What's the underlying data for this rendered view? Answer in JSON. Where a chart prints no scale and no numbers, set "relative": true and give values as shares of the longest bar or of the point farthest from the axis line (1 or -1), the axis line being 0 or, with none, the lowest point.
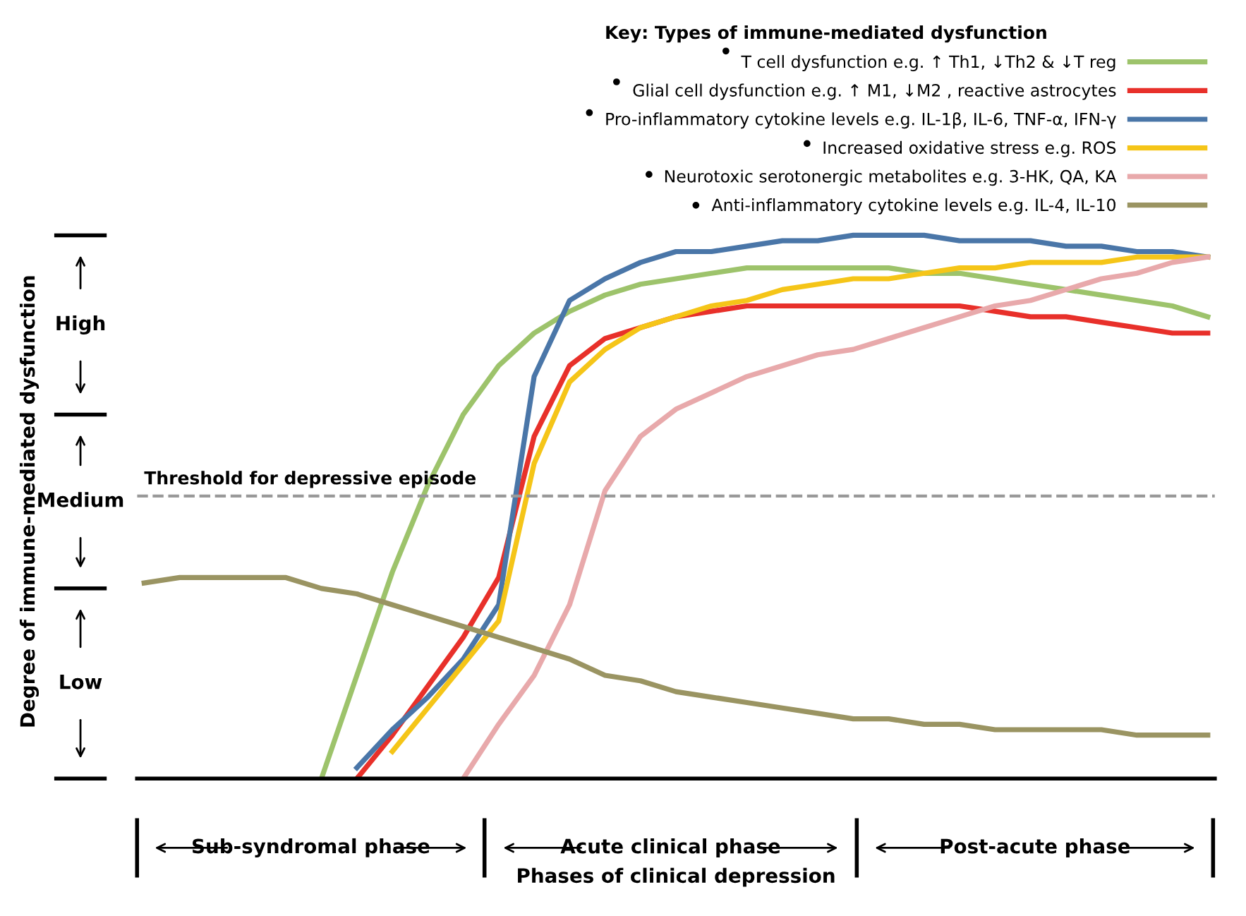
{
  "chart_data": {
    "type": "line",
    "relative": true,
    "xlabel": "Phases of clinical depression",
    "legend_title": "Key: Types of immune-mediated dysfunction",
    "legend": "top right",
    "categories": [
      null,
      null,
      null,
      null,
      null,
      null,
      null,
      null,
      null,
      null,
      null,
      null,
      null,
      null,
      null,
      null,
      null,
      null,
      null,
      null,
      null,
      null,
      null,
      null,
      null,
      null,
      null,
      null,
      null,
      null,
      null
    ],
    "series": [
      {
        "name": "T cell dysfunction e.g. ↑ Th1, ↓Th2 & ↓T reg",
        "color": "#9dc36b",
        "values": [
          null,
          null,
          null,
          null,
          null,
          0,
          0.19,
          0.38,
          0.54,
          0.67,
          0.76,
          0.82,
          0.86,
          0.89,
          0.91,
          0.92,
          0.93,
          0.94,
          0.94,
          0.94,
          0.94,
          0.94,
          0.93,
          0.93,
          0.92,
          0.91,
          0.9,
          0.89,
          0.88,
          0.87,
          0.85
        ]
      },
      {
        "name": "Glial cell dysfunction e.g. ↑ M1, ↓M2 , reactive astrocytes",
        "color": "#e8302a",
        "values": [
          null,
          null,
          null,
          null,
          null,
          null,
          0,
          0.08,
          0.17,
          0.26,
          0.37,
          0.63,
          0.76,
          0.81,
          0.83,
          0.85,
          0.86,
          0.87,
          0.87,
          0.87,
          0.87,
          0.87,
          0.87,
          0.87,
          0.86,
          0.85,
          0.85,
          0.84,
          0.83,
          0.82,
          0.82
        ]
      },
      {
        "name": "Pro-inflammatory cytokine levels e.g. IL-1β, IL-6, TNF-α, IFN-γ",
        "color": "#4a76a8",
        "values": [
          null,
          null,
          null,
          null,
          null,
          null,
          0.02,
          0.09,
          0.15,
          0.22,
          0.32,
          0.74,
          0.88,
          0.92,
          0.95,
          0.97,
          0.97,
          0.98,
          0.99,
          0.99,
          1.0,
          1.0,
          1.0,
          0.99,
          0.99,
          0.99,
          0.98,
          0.98,
          0.97,
          0.97,
          0.96
        ]
      },
      {
        "name": "Increased oxidative stress e.g. ROS",
        "color": "#f5c518",
        "values": [
          null,
          null,
          null,
          null,
          null,
          null,
          null,
          0.05,
          0.13,
          0.21,
          0.29,
          0.58,
          0.73,
          0.79,
          0.83,
          0.85,
          0.87,
          0.88,
          0.9,
          0.91,
          0.92,
          0.92,
          0.93,
          0.94,
          0.94,
          0.95,
          0.95,
          0.95,
          0.96,
          0.96,
          0.96
        ]
      },
      {
        "name": "Neurotoxic serotonergic metabolites e.g. 3-HK, QA, KA",
        "color": "#e8a9ab",
        "values": [
          null,
          null,
          null,
          null,
          null,
          null,
          null,
          null,
          null,
          0,
          0.1,
          0.19,
          0.32,
          0.53,
          0.63,
          0.68,
          0.71,
          0.74,
          0.76,
          0.78,
          0.79,
          0.81,
          0.83,
          0.85,
          0.87,
          0.88,
          0.9,
          0.92,
          0.93,
          0.95,
          0.96
        ]
      },
      {
        "name": "Anti-inflammatory cytokine levels e.g. IL-4, IL-10",
        "color": "#9a9462",
        "values": [
          0.36,
          0.37,
          0.37,
          0.37,
          0.37,
          0.35,
          0.34,
          0.32,
          0.3,
          0.28,
          0.26,
          0.24,
          0.22,
          0.19,
          0.18,
          0.16,
          0.15,
          0.14,
          0.13,
          0.12,
          0.11,
          0.11,
          0.1,
          0.1,
          0.09,
          0.09,
          0.09,
          0.09,
          0.08,
          0.08,
          0.08
        ]
      }
    ],
    "ref_lines": [
      {
        "axis": "y",
        "value": 0.52,
        "label": "Threshold for depressive episode",
        "color": "#999999",
        "line_style": "dashed"
      }
    ],
    "annotations": [
      "High",
      "Medium",
      "Low",
      "Sub-syndromal phase",
      "Acute clinical phase",
      "Post-acute phase",
      "Degree of immune-mediated dysfunction"
    ]
  }
}
